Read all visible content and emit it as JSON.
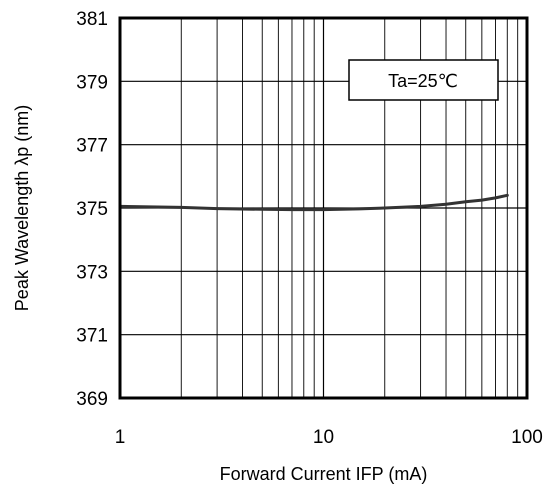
{
  "chart_data": {
    "type": "line",
    "xscale": "log",
    "xlim": [
      1,
      100
    ],
    "ylim": [
      369,
      381
    ],
    "xlabel": "Forward Current IFP (mA)",
    "ylabel": "Peak Wavelength λp (nm)",
    "x_ticks": [
      "1",
      "10",
      "100"
    ],
    "y_ticks": [
      "369",
      "371",
      "373",
      "375",
      "377",
      "379",
      "381"
    ],
    "y_tick_values": [
      369,
      371,
      373,
      375,
      377,
      379,
      381
    ],
    "annotation": "Ta=25℃",
    "grid": true,
    "series": [
      {
        "color": "#333333",
        "x": [
          1,
          2,
          3,
          5,
          7,
          10,
          15,
          20,
          30,
          40,
          50,
          60,
          70,
          80
        ],
        "y": [
          375.05,
          375.02,
          374.98,
          374.96,
          374.95,
          374.95,
          374.97,
          375.0,
          375.05,
          375.12,
          375.2,
          375.25,
          375.32,
          375.4
        ]
      }
    ]
  }
}
